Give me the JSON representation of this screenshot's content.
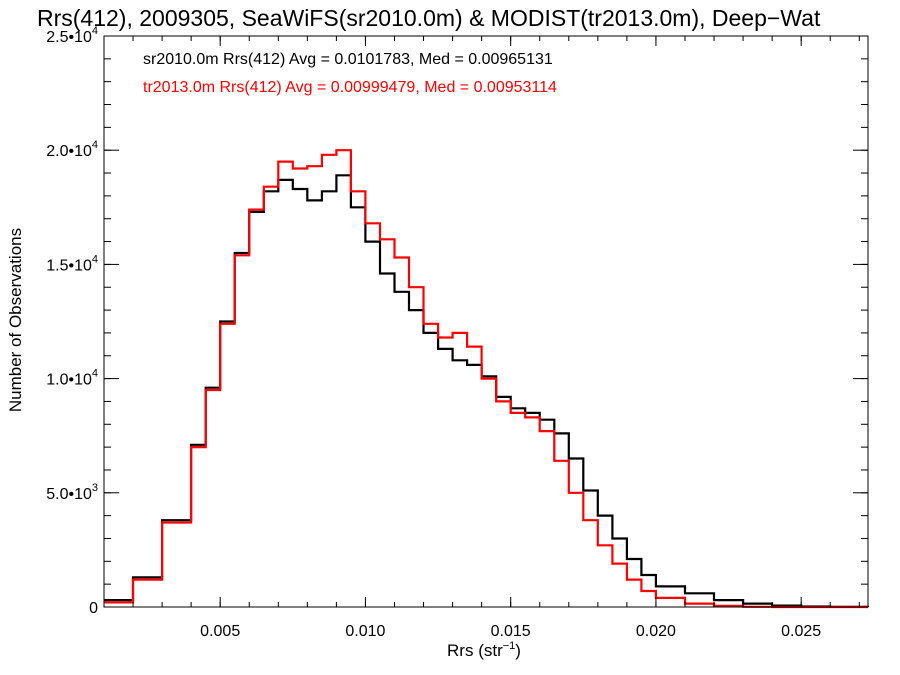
{
  "chart_data": {
    "type": "line",
    "step": true,
    "title": "Rrs(412), 2009305, SeaWiFS(sr2010.0m) & MODIST(tr2013.0m), Deep−Wat",
    "xlabel": "Rrs (str⁻¹)",
    "ylabel": "Number of Observations",
    "xlim": [
      0.001,
      0.0273
    ],
    "ylim": [
      0,
      25000
    ],
    "x_ticks": [
      {
        "value": 0.005,
        "label": "0.005"
      },
      {
        "value": 0.01,
        "label": "0.010"
      },
      {
        "value": 0.015,
        "label": "0.015"
      },
      {
        "value": 0.02,
        "label": "0.020"
      },
      {
        "value": 0.025,
        "label": "0.025"
      }
    ],
    "y_ticks": [
      {
        "value": 0,
        "label": "0"
      },
      {
        "value": 5000,
        "mantissa": "5.0•",
        "base": "10",
        "exp": "3"
      },
      {
        "value": 10000,
        "mantissa": "1.0•",
        "base": "10",
        "exp": "4"
      },
      {
        "value": 15000,
        "mantissa": "1.5•",
        "base": "10",
        "exp": "4"
      },
      {
        "value": 20000,
        "mantissa": "2.0•",
        "base": "10",
        "exp": "4"
      },
      {
        "value": 25000,
        "mantissa": "2.5•",
        "base": "10",
        "exp": "4"
      }
    ],
    "grid": false,
    "legend_position": "top-left",
    "series": [
      {
        "label": "sr2010.0m Rrs(412) Avg = 0.0101783, Med = 0.00965131",
        "color": "#000000",
        "x": [
          0.001,
          0.002,
          0.003,
          0.004,
          0.0045,
          0.005,
          0.0055,
          0.006,
          0.0065,
          0.007,
          0.0075,
          0.008,
          0.0085,
          0.009,
          0.0095,
          0.01,
          0.0105,
          0.011,
          0.0115,
          0.012,
          0.0125,
          0.013,
          0.0135,
          0.014,
          0.0145,
          0.015,
          0.0155,
          0.016,
          0.0165,
          0.017,
          0.0175,
          0.018,
          0.0185,
          0.019,
          0.0195,
          0.02,
          0.021,
          0.022,
          0.023,
          0.024,
          0.025,
          0.026,
          0.0273
        ],
        "values": [
          300,
          1300,
          3800,
          7100,
          9600,
          12500,
          15500,
          17300,
          18200,
          18700,
          18300,
          17800,
          18200,
          18900,
          17500,
          16000,
          14600,
          13800,
          13000,
          12000,
          11300,
          10800,
          10600,
          10100,
          9200,
          8700,
          8500,
          8200,
          7600,
          6500,
          5100,
          4000,
          3000,
          2100,
          1400,
          900,
          600,
          300,
          150,
          60,
          20,
          5,
          0
        ]
      },
      {
        "label": "tr2013.0m Rrs(412) Avg = 0.00999479, Med = 0.00953114",
        "color": "#ff0000",
        "x": [
          0.001,
          0.002,
          0.003,
          0.004,
          0.0045,
          0.005,
          0.0055,
          0.006,
          0.0065,
          0.007,
          0.0075,
          0.008,
          0.0085,
          0.009,
          0.0095,
          0.01,
          0.0105,
          0.011,
          0.0115,
          0.012,
          0.0125,
          0.013,
          0.0135,
          0.014,
          0.0145,
          0.015,
          0.0155,
          0.016,
          0.0165,
          0.017,
          0.0175,
          0.018,
          0.0185,
          0.019,
          0.0195,
          0.02,
          0.021,
          0.022,
          0.023,
          0.024,
          0.025,
          0.026,
          0.0273
        ],
        "values": [
          200,
          1200,
          3700,
          7000,
          9500,
          12400,
          15400,
          17400,
          18400,
          19500,
          19200,
          19300,
          19800,
          20000,
          18200,
          16800,
          16100,
          15300,
          14000,
          12400,
          11800,
          12000,
          11400,
          10000,
          9000,
          8500,
          8300,
          7700,
          6400,
          5000,
          3800,
          2700,
          1900,
          1200,
          700,
          400,
          150,
          50,
          10,
          0,
          0,
          0,
          0
        ]
      }
    ]
  }
}
